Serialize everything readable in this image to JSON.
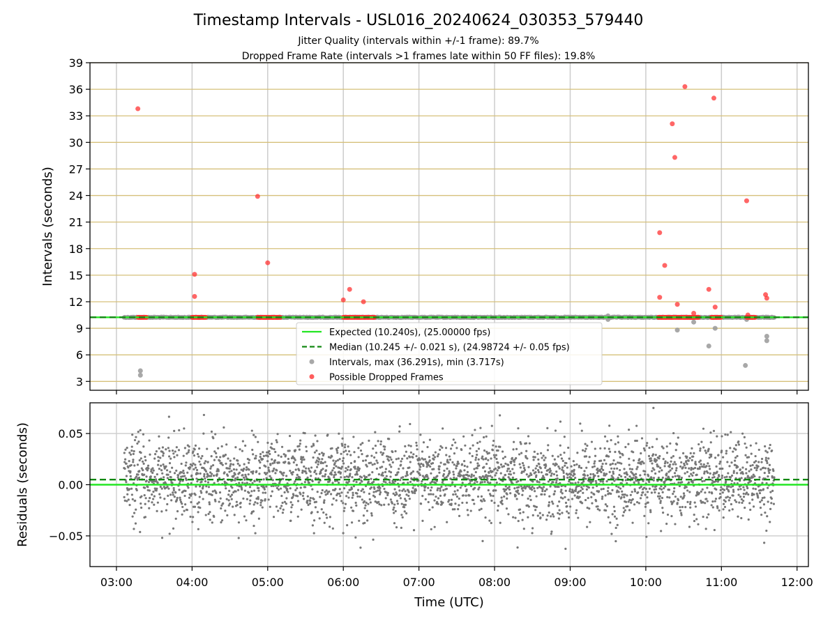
{
  "figure": {
    "title": "Timestamp Intervals - USL016_20240624_030353_579440",
    "subtitle_line1": "Jitter Quality (intervals within +/-1 frame): 89.7%",
    "subtitle_line2": "Dropped Frame Rate (intervals >1 frames late within 50 FF files): 19.8%"
  },
  "colors": {
    "expected_line": "#22e622",
    "median_line": "#118811",
    "interval_points": "#999999",
    "dropped_points": "#ff3333",
    "residual_points": "#777777",
    "top_gridlines": "#d6c07a",
    "gridlines": "#cccccc"
  },
  "chart_data": [
    {
      "type": "scatter",
      "panel": "intervals",
      "ylabel": "Intervals (seconds)",
      "xlabel": "",
      "xlim": [
        "02:39",
        "12:09"
      ],
      "ylim": [
        2,
        39
      ],
      "yticks": [
        3,
        6,
        9,
        12,
        15,
        18,
        21,
        24,
        27,
        30,
        33,
        36,
        39
      ],
      "grid": "horizontal lines at y ticks, vertical lines at hour ticks",
      "legend_position": "lower-center",
      "legend": [
        "Expected (10.240s), (25.00000 fps)",
        "Median (10.245 +/- 0.021 s), (24.98724 +/- 0.05 fps)",
        "Intervals, max (36.291s), min (3.717s)",
        "Possible Dropped Frames"
      ],
      "expected_value": 10.24,
      "median_value": 10.245,
      "baseline_intervals": {
        "start": "03:06",
        "end": "11:42",
        "value": 10.24
      },
      "intervals_outliers": [
        {
          "x": "03:19",
          "y": 4.2
        },
        {
          "x": "03:19",
          "y": 3.7
        },
        {
          "x": "10:25",
          "y": 8.8
        },
        {
          "x": "10:38",
          "y": 9.7
        },
        {
          "x": "10:50",
          "y": 7.0
        },
        {
          "x": "10:55",
          "y": 9.0
        },
        {
          "x": "11:19",
          "y": 4.8
        },
        {
          "x": "11:20",
          "y": 10.0
        },
        {
          "x": "11:36",
          "y": 8.1
        },
        {
          "x": "11:36",
          "y": 7.6
        },
        {
          "x": "09:30",
          "y": 10.0
        },
        {
          "x": "09:30",
          "y": 10.4
        }
      ],
      "dropped_frames": [
        {
          "x": "03:17",
          "y": 33.8
        },
        {
          "x": "04:02",
          "y": 15.1
        },
        {
          "x": "04:02",
          "y": 12.6
        },
        {
          "x": "04:52",
          "y": 23.9
        },
        {
          "x": "05:00",
          "y": 16.4
        },
        {
          "x": "06:00",
          "y": 12.2
        },
        {
          "x": "06:05",
          "y": 13.4
        },
        {
          "x": "06:16",
          "y": 12.0
        },
        {
          "x": "10:11",
          "y": 19.8
        },
        {
          "x": "10:11",
          "y": 12.5
        },
        {
          "x": "10:15",
          "y": 16.1
        },
        {
          "x": "10:21",
          "y": 32.1
        },
        {
          "x": "10:23",
          "y": 28.3
        },
        {
          "x": "10:25",
          "y": 11.7
        },
        {
          "x": "10:31",
          "y": 36.3
        },
        {
          "x": "10:38",
          "y": 10.7
        },
        {
          "x": "10:50",
          "y": 13.4
        },
        {
          "x": "10:54",
          "y": 35.0
        },
        {
          "x": "10:55",
          "y": 11.4
        },
        {
          "x": "11:20",
          "y": 23.4
        },
        {
          "x": "11:21",
          "y": 10.5
        },
        {
          "x": "11:35",
          "y": 12.8
        },
        {
          "x": "11:36",
          "y": 12.4
        }
      ],
      "dropped_clusters": [
        {
          "start": "03:17",
          "end": "03:24",
          "y": 10.24
        },
        {
          "start": "04:00",
          "end": "04:11",
          "y": 10.24
        },
        {
          "start": "04:52",
          "end": "05:10",
          "y": 10.24
        },
        {
          "start": "06:00",
          "end": "06:25",
          "y": 10.24
        },
        {
          "start": "10:10",
          "end": "10:42",
          "y": 10.24
        },
        {
          "start": "10:52",
          "end": "11:00",
          "y": 10.24
        },
        {
          "start": "11:20",
          "end": "11:27",
          "y": 10.24
        }
      ]
    },
    {
      "type": "scatter",
      "panel": "residuals",
      "ylabel": "Residuals (seconds)",
      "xlabel": "Time (UTC)",
      "xlim": [
        "02:39",
        "12:09"
      ],
      "ylim": [
        -0.08,
        0.08
      ],
      "yticks": [
        -0.05,
        0.0,
        0.05
      ],
      "ytick_labels": [
        "−0.05",
        "0.00",
        "0.05"
      ],
      "xticks": [
        "03:00",
        "04:00",
        "05:00",
        "06:00",
        "07:00",
        "08:00",
        "09:00",
        "10:00",
        "11:00",
        "12:00"
      ],
      "grid": true,
      "expected_value": 0.0,
      "median_value": 0.005,
      "residual_cloud": {
        "start": "03:06",
        "end": "11:42",
        "center": 0.005,
        "spread": 0.02,
        "min": -0.065,
        "max": 0.075
      }
    }
  ]
}
